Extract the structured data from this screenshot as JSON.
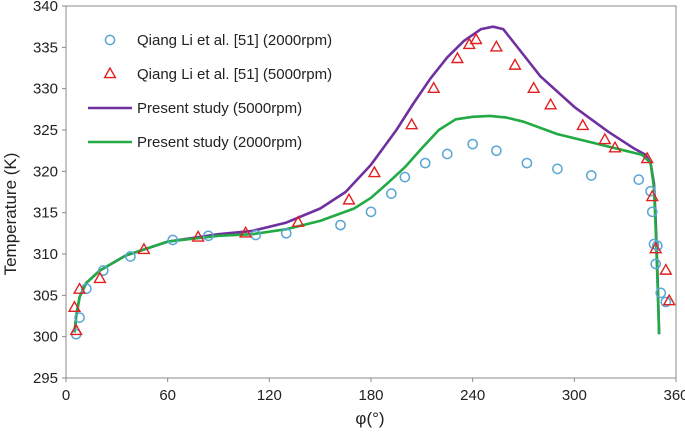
{
  "chart_data": {
    "type": "scatter",
    "title": "",
    "xlabel": "φ(°)",
    "ylabel": "Temperature (K)",
    "xlim": [
      0,
      360
    ],
    "ylim": [
      295,
      340
    ],
    "xticks": [
      0,
      60,
      120,
      180,
      240,
      300,
      360
    ],
    "yticks": [
      295,
      300,
      305,
      310,
      315,
      320,
      325,
      330,
      335,
      340
    ],
    "grid": false,
    "legend_position": "top-left",
    "series": [
      {
        "name": "Qiang Li et al. [51] (2000rpm)",
        "kind": "marker-circle",
        "color": "#5aa6d4",
        "x": [
          6,
          8,
          12,
          22,
          38,
          63,
          84,
          112,
          130,
          162,
          180,
          192,
          200,
          212,
          225,
          240,
          254,
          272,
          290,
          310,
          338,
          345,
          346,
          347,
          348,
          349,
          351,
          354
        ],
        "y": [
          300.3,
          302.3,
          305.8,
          308.0,
          309.7,
          311.7,
          312.2,
          312.3,
          312.5,
          313.5,
          315.1,
          317.3,
          319.3,
          321.0,
          322.1,
          323.3,
          322.5,
          321.0,
          320.3,
          319.5,
          319.0,
          317.6,
          315.1,
          311.2,
          308.8,
          311.0,
          305.3,
          304.2
        ]
      },
      {
        "name": "Qiang Li et al. [51] (5000rpm)",
        "kind": "marker-triangle",
        "color": "#e02020",
        "x": [
          5,
          6,
          8,
          20,
          46,
          78,
          106,
          137,
          167,
          182,
          204,
          217,
          231,
          238,
          242,
          254,
          265,
          276,
          286,
          305,
          318,
          324,
          343,
          346,
          348,
          354,
          356
        ],
        "y": [
          303.5,
          300.7,
          305.7,
          307.0,
          310.5,
          312.0,
          312.5,
          313.8,
          316.5,
          319.8,
          325.6,
          330.0,
          333.6,
          335.3,
          335.9,
          335.0,
          332.8,
          330.0,
          328.0,
          325.5,
          323.8,
          322.8,
          321.5,
          316.9,
          310.6,
          308.0,
          304.3
        ]
      },
      {
        "name": "Present study (5000rpm)",
        "kind": "line",
        "color": "#7030a0",
        "x": [
          5,
          6,
          8,
          12,
          20,
          35,
          60,
          90,
          110,
          130,
          150,
          165,
          180,
          195,
          205,
          215,
          225,
          235,
          245,
          252,
          258,
          265,
          280,
          300,
          320,
          335,
          342,
          345,
          347,
          348,
          349,
          350
        ],
        "y": [
          300.5,
          302.5,
          304.8,
          306.5,
          308.0,
          309.8,
          311.5,
          312.4,
          312.8,
          313.8,
          315.5,
          317.5,
          320.8,
          325.0,
          328.2,
          331.2,
          333.8,
          335.8,
          337.2,
          337.5,
          337.2,
          335.4,
          331.5,
          327.8,
          324.8,
          322.8,
          322.0,
          321.0,
          318.5,
          314.0,
          308.0,
          300.3
        ]
      },
      {
        "name": "Present study (2000rpm)",
        "kind": "line",
        "color": "#22aa44",
        "x": [
          5,
          6,
          8,
          12,
          20,
          35,
          60,
          90,
          110,
          130,
          150,
          170,
          180,
          190,
          200,
          210,
          220,
          230,
          240,
          250,
          260,
          270,
          290,
          310,
          330,
          340,
          345,
          347,
          348,
          349,
          350
        ],
        "y": [
          300.5,
          302.5,
          304.8,
          306.5,
          308.0,
          309.8,
          311.5,
          312.2,
          312.4,
          313.0,
          314.0,
          315.5,
          316.8,
          318.6,
          320.5,
          322.8,
          325.0,
          326.3,
          326.6,
          326.7,
          326.5,
          326.0,
          324.5,
          323.5,
          322.5,
          322.0,
          321.0,
          318.0,
          313.0,
          307.0,
          300.3
        ]
      }
    ]
  }
}
